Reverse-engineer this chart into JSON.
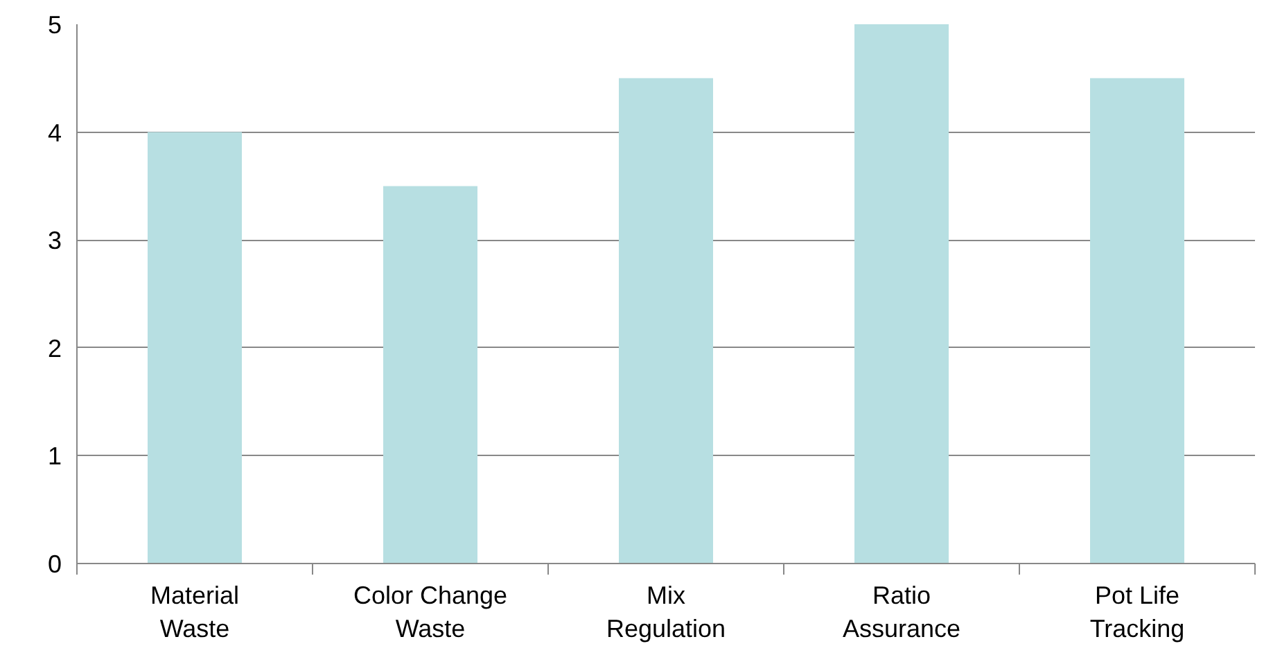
{
  "chart_data": {
    "type": "bar",
    "categories": [
      "Material Waste",
      "Color Change Waste",
      "Mix Regulation",
      "Ratio Assurance",
      "Pot Life Tracking"
    ],
    "values": [
      4,
      3.5,
      4.5,
      5,
      4.5
    ],
    "color": "#b7dfe2",
    "ylim": [
      0,
      5
    ],
    "yticks": [
      0,
      1,
      2,
      3,
      4,
      5
    ],
    "grid": "y"
  }
}
